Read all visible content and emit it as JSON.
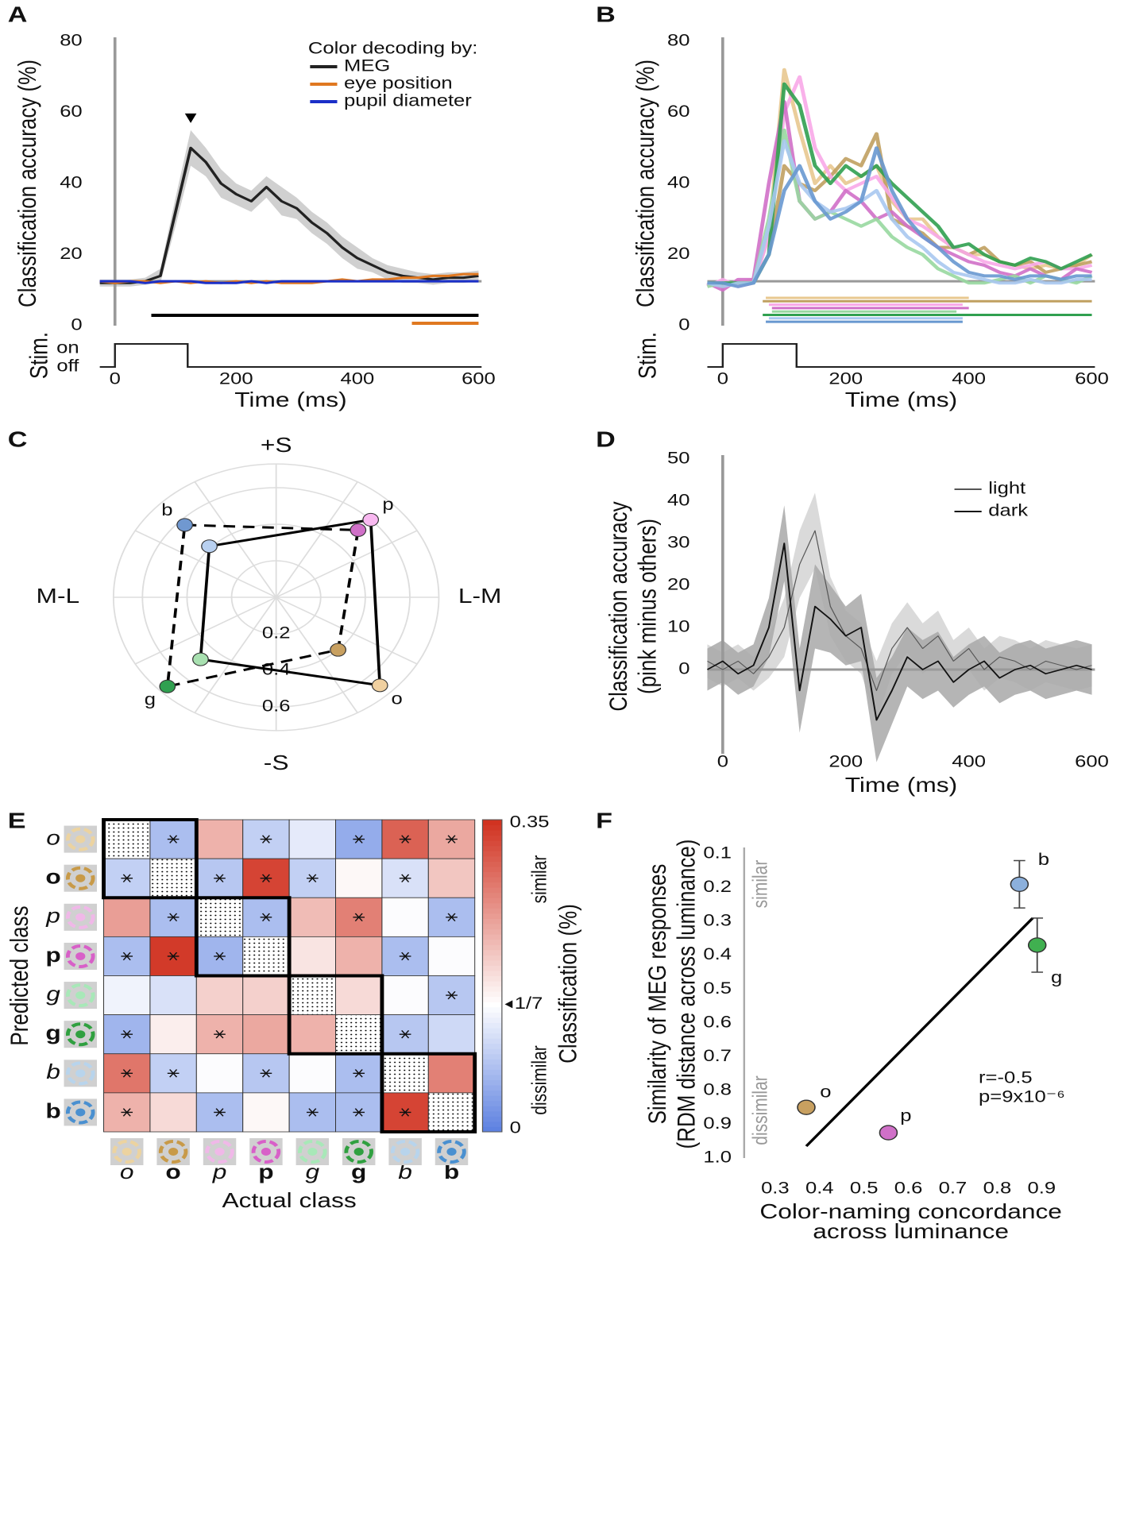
{
  "chart_data": [
    {
      "panel": "A",
      "type": "line",
      "ylabel": "Classification accuracy (%)",
      "xlabel": "Time (ms)",
      "xlim": [
        -25,
        605
      ],
      "ylim": [
        0,
        80
      ],
      "xticks": [
        0,
        200,
        400,
        600
      ],
      "yticks": [
        0,
        20,
        40,
        60,
        80
      ],
      "zero_line": true,
      "chance": 12.5,
      "x": [
        -25,
        0,
        25,
        50,
        75,
        100,
        125,
        150,
        175,
        200,
        225,
        250,
        275,
        300,
        325,
        350,
        375,
        400,
        425,
        450,
        475,
        500,
        525,
        550,
        575,
        600
      ],
      "legend_title": "Color decoding by:",
      "series": [
        {
          "name": "MEG",
          "color": "#222222",
          "band_color": "#c8c8c8",
          "values": [
            12,
            12,
            12,
            12.5,
            14,
            32,
            50,
            46,
            40,
            37,
            35,
            39,
            35,
            33,
            29,
            26,
            22,
            19,
            17,
            15,
            14,
            13.5,
            13,
            13.5,
            13.5,
            14
          ],
          "error": [
            1,
            1,
            1,
            1,
            2,
            4,
            5,
            4,
            4,
            3,
            3,
            3,
            4,
            3,
            3,
            3,
            3,
            3,
            2,
            2,
            2,
            1.5,
            1.5,
            1.5,
            1.5,
            1.5
          ]
        },
        {
          "name": "eye position",
          "color": "#e07820",
          "values": [
            12.5,
            12,
            12.5,
            12.5,
            12,
            12.5,
            12,
            12.5,
            12,
            12.5,
            12,
            12.5,
            12,
            12,
            12,
            12.5,
            13,
            12.5,
            13,
            13,
            13.5,
            13.5,
            14,
            14,
            14.5,
            14.5
          ]
        },
        {
          "name": "pupil diameter",
          "color": "#1a2fc8",
          "values": [
            12.5,
            12.5,
            12.5,
            12,
            12.5,
            12.5,
            12.5,
            12,
            12,
            12,
            12.5,
            12,
            12.5,
            12.5,
            12.5,
            12.5,
            12.5,
            12.5,
            12.5,
            12.5,
            12.5,
            12.5,
            12.5,
            12.5,
            12.5,
            12.5
          ]
        }
      ],
      "significance": [
        {
          "color": "#000000",
          "start": 60,
          "end": 600
        },
        {
          "color": "#e07820",
          "start": 490,
          "end": 600
        }
      ],
      "peak_marker": 125,
      "stim": {
        "label": "Stim.",
        "on_label": "on",
        "off_label": "off",
        "onset": 0,
        "offset": 120
      }
    },
    {
      "panel": "B",
      "type": "line",
      "ylabel": "Classification accuracy (%)",
      "xlabel": "Time (ms)",
      "xlim": [
        -25,
        605
      ],
      "ylim": [
        0,
        80
      ],
      "xticks": [
        0,
        200,
        400,
        600
      ],
      "yticks": [
        0,
        20,
        40,
        60,
        80
      ],
      "zero_line": true,
      "chance": 12.5,
      "x": [
        -25,
        0,
        25,
        50,
        75,
        100,
        125,
        150,
        175,
        200,
        225,
        250,
        275,
        300,
        325,
        350,
        375,
        400,
        425,
        450,
        475,
        500,
        525,
        550,
        575,
        600
      ],
      "series": [
        {
          "color": "#e8c890",
          "significant": [
            70,
            400
          ],
          "values": [
            12,
            12,
            12,
            13,
            25,
            72,
            55,
            40,
            45,
            40,
            42,
            45,
            35,
            30,
            30,
            25,
            22,
            20,
            20,
            18,
            17,
            16,
            17,
            16,
            17,
            20
          ]
        },
        {
          "color": "#c0a060",
          "significant": [
            65,
            600
          ],
          "values": [
            12,
            11,
            12,
            12,
            20,
            45,
            40,
            38,
            42,
            47,
            45,
            54,
            30,
            28,
            26,
            22,
            22,
            20,
            22,
            18,
            17,
            18,
            15,
            16,
            17,
            18
          ]
        },
        {
          "color": "#f8a8e8",
          "significant": [
            75,
            390
          ],
          "values": [
            11,
            13,
            11,
            12,
            25,
            60,
            70,
            50,
            42,
            38,
            40,
            42,
            36,
            30,
            28,
            25,
            22,
            20,
            18,
            17,
            16,
            17,
            18,
            16,
            16,
            17
          ]
        },
        {
          "color": "#d070c8",
          "significant": [
            80,
            400
          ],
          "values": [
            12,
            10,
            13,
            13,
            40,
            63,
            35,
            30,
            32,
            38,
            35,
            30,
            32,
            28,
            25,
            22,
            20,
            18,
            17,
            15,
            14,
            16,
            14,
            13,
            16,
            15
          ]
        },
        {
          "color": "#98d8a0",
          "significant": [
            80,
            380
          ],
          "values": [
            11,
            12,
            12,
            12,
            30,
            55,
            35,
            30,
            32,
            30,
            28,
            30,
            25,
            22,
            20,
            16,
            14,
            12,
            12,
            13,
            14,
            12,
            14,
            13,
            12,
            14
          ]
        },
        {
          "color": "#30a050",
          "significant": [
            65,
            600
          ],
          "values": [
            12,
            12,
            12,
            12,
            20,
            68,
            62,
            45,
            40,
            45,
            42,
            45,
            40,
            36,
            32,
            28,
            22,
            23,
            20,
            18,
            17,
            19,
            18,
            16,
            18,
            20
          ]
        },
        {
          "color": "#a8c8f0",
          "significant": [
            75,
            390
          ],
          "values": [
            12,
            11,
            12,
            12,
            28,
            52,
            40,
            35,
            32,
            33,
            35,
            38,
            30,
            25,
            22,
            18,
            15,
            14,
            13,
            12,
            12,
            13,
            12,
            12,
            13,
            13
          ]
        },
        {
          "color": "#6898d0",
          "significant": [
            70,
            390
          ],
          "values": [
            12,
            12,
            11,
            12,
            20,
            38,
            45,
            35,
            30,
            32,
            35,
            50,
            38,
            30,
            25,
            22,
            18,
            15,
            14,
            14,
            13,
            14,
            14,
            13,
            14,
            14
          ]
        }
      ],
      "stim": {
        "label": "Stim.",
        "onset": 0,
        "offset": 120
      }
    },
    {
      "panel": "C",
      "type": "polar",
      "rlim": [
        0,
        0.73
      ],
      "rticks": [
        0.2,
        0.4,
        0.6
      ],
      "axis_labels": {
        "top": "+S",
        "bottom": "-S",
        "left": "M-L",
        "right": "L-M"
      },
      "categories": [
        "b",
        "p",
        "o",
        "g"
      ],
      "series": [
        {
          "style": "solid",
          "colors": [
            "#b8d0f0",
            "#f8b8f0",
            "#f0d0a0",
            "#a8e0b0"
          ],
          "angle": [
            137,
            45,
            314,
            225
          ],
          "values": [
            0.41,
            0.6,
            0.67,
            0.48
          ]
        },
        {
          "style": "dashed",
          "colors": [
            "#7098d0",
            "#d070c8",
            "#c8a060",
            "#30a050"
          ],
          "angle": [
            136,
            45,
            314,
            225
          ],
          "values": [
            0.57,
            0.52,
            0.4,
            0.69
          ]
        }
      ]
    },
    {
      "panel": "D",
      "type": "line",
      "ylabel": [
        "Classification accuracy",
        "(pink minus others)"
      ],
      "xlabel": "Time (ms)",
      "xlim": [
        -25,
        605
      ],
      "ylim": [
        -20,
        50
      ],
      "xticks": [
        0,
        200,
        400,
        600
      ],
      "yticks": [
        0,
        10,
        20,
        30,
        40,
        50
      ],
      "zero_line": true,
      "chance": 0,
      "x": [
        -25,
        0,
        25,
        50,
        75,
        100,
        125,
        150,
        175,
        200,
        225,
        250,
        275,
        300,
        325,
        350,
        375,
        400,
        425,
        450,
        475,
        500,
        525,
        550,
        575,
        600
      ],
      "series": [
        {
          "name": "light",
          "color": "#555555",
          "width": 1,
          "band_color": "#d4d4d4",
          "values": [
            2,
            0,
            2,
            -1,
            3,
            10,
            25,
            33,
            15,
            8,
            5,
            -5,
            5,
            10,
            5,
            8,
            2,
            5,
            0,
            3,
            2,
            0,
            2,
            1,
            0,
            1
          ],
          "error": [
            4,
            4,
            4,
            4,
            5,
            7,
            8,
            9,
            7,
            6,
            6,
            7,
            6,
            6,
            6,
            6,
            5,
            5,
            5,
            5,
            5,
            5,
            5,
            5,
            5,
            5
          ]
        },
        {
          "name": "dark",
          "color": "#111111",
          "width": 1.6,
          "band_color": "#a8a8a8",
          "values": [
            0,
            2,
            -1,
            1,
            10,
            30,
            -5,
            15,
            12,
            8,
            10,
            -12,
            -5,
            3,
            0,
            2,
            -3,
            0,
            2,
            -2,
            0,
            1,
            -1,
            0,
            1,
            0
          ],
          "error": [
            5,
            5,
            5,
            5,
            7,
            9,
            10,
            10,
            8,
            7,
            8,
            10,
            8,
            7,
            7,
            7,
            6,
            6,
            6,
            6,
            6,
            6,
            6,
            6,
            6,
            6
          ]
        }
      ]
    },
    {
      "panel": "E",
      "type": "heatmap",
      "ylabel": "Predicted class",
      "xlabel": "Actual class",
      "labels": [
        "o",
        "o",
        "p",
        "p",
        "g",
        "g",
        "b",
        "b"
      ],
      "label_styles": [
        "italic",
        "bold",
        "italic",
        "bold",
        "italic",
        "bold",
        "italic",
        "bold"
      ],
      "label_colors": [
        "#ecd3a0",
        "#c89a48",
        "#f0b8e8",
        "#d860c8",
        "#a8e8b8",
        "#30a040",
        "#b8d4ec",
        "#4a90d0"
      ],
      "blocks": [
        [
          0,
          1
        ],
        [
          2,
          3
        ],
        [
          4,
          5
        ],
        [
          6,
          7
        ]
      ],
      "values": [
        [
          null,
          0.07,
          0.22,
          0.09,
          0.12,
          0.05,
          0.3,
          0.23
        ],
        [
          0.09,
          null,
          0.08,
          0.33,
          0.09,
          0.15,
          0.11,
          0.2
        ],
        [
          0.24,
          0.07,
          null,
          0.07,
          0.21,
          0.27,
          0.14,
          0.07
        ],
        [
          0.07,
          0.34,
          0.06,
          null,
          0.17,
          0.22,
          0.07,
          0.14
        ],
        [
          0.13,
          0.11,
          0.19,
          0.19,
          null,
          0.18,
          0.14,
          0.08
        ],
        [
          0.06,
          0.16,
          0.22,
          0.23,
          0.22,
          null,
          0.08,
          0.1
        ],
        [
          0.28,
          0.09,
          0.14,
          0.08,
          0.14,
          0.07,
          null,
          0.27
        ],
        [
          0.22,
          0.18,
          0.07,
          0.15,
          0.07,
          0.07,
          0.33,
          null
        ]
      ],
      "significant": [
        [
          false,
          true,
          false,
          true,
          false,
          true,
          true,
          true
        ],
        [
          true,
          false,
          true,
          true,
          true,
          false,
          true,
          false
        ],
        [
          false,
          true,
          false,
          true,
          false,
          true,
          false,
          true
        ],
        [
          true,
          true,
          true,
          false,
          false,
          false,
          true,
          false
        ],
        [
          false,
          false,
          false,
          false,
          false,
          false,
          false,
          true
        ],
        [
          true,
          false,
          true,
          false,
          false,
          false,
          true,
          false
        ],
        [
          true,
          true,
          false,
          true,
          false,
          true,
          false,
          false
        ],
        [
          true,
          false,
          true,
          false,
          true,
          true,
          true,
          false
        ]
      ],
      "colorbar": {
        "label": "Classification (%)",
        "lim": [
          0,
          0.35
        ],
        "mid": 0.143,
        "ticks": [
          0,
          {
            "value": 0.143,
            "label": "1/7"
          },
          0.35
        ],
        "low_label": "dissimilar",
        "high_label": "similar",
        "low_color": "#5b7fe0",
        "high_color": "#d0301e"
      }
    },
    {
      "panel": "F",
      "type": "scatter",
      "ylabel": [
        "Similarity of MEG responses",
        "(RDM distance across luminance)"
      ],
      "xlabel": [
        "Color-naming concordance",
        "across luminance"
      ],
      "xlim": [
        0.3,
        0.9
      ],
      "ylim": [
        0.1,
        1.0
      ],
      "y_inverted": true,
      "xticks": [
        0.3,
        0.4,
        0.5,
        0.6,
        0.7,
        0.8,
        0.9
      ],
      "yticks": [
        0.1,
        0.2,
        0.3,
        0.4,
        0.5,
        0.6,
        0.7,
        0.8,
        0.9,
        {
          "value": 1.0,
          "label": "1.0"
        }
      ],
      "similar_label": "similar",
      "dissimilar_label": "dissimilar",
      "categories": [
        "b",
        "g",
        "o",
        "p"
      ],
      "colors": [
        "#8cb0dc",
        "#40b050",
        "#c8a060",
        "#d070c8"
      ],
      "x": [
        0.85,
        0.89,
        0.37,
        0.555
      ],
      "values": [
        0.19,
        0.37,
        0.85,
        0.925
      ],
      "error": [
        0.07,
        0.08,
        0.01,
        0.01
      ],
      "fit_line": {
        "x": [
          0.37,
          0.88
        ],
        "y": [
          0.965,
          0.29
        ]
      },
      "stats": [
        "r=-0.5",
        "p=9x10⁻⁶"
      ]
    }
  ]
}
